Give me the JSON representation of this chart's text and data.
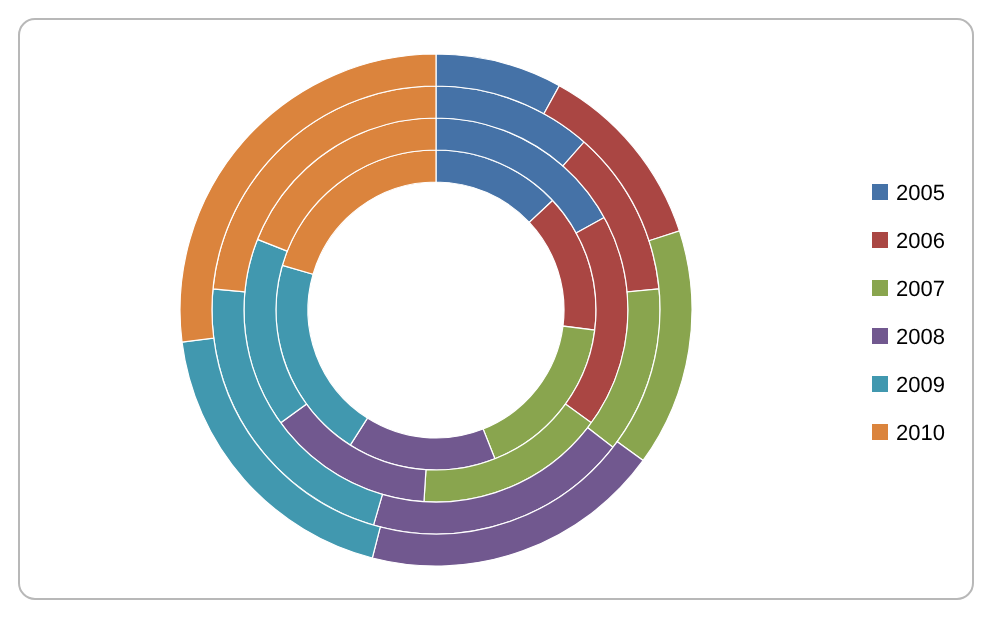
{
  "chart_data": {
    "type": "donut",
    "categories": [
      "2005",
      "2006",
      "2007",
      "2008",
      "2009",
      "2010"
    ],
    "colors": [
      "#4572a7",
      "#aa4643",
      "#89a54e",
      "#71588f",
      "#4198af",
      "#db843d"
    ],
    "series": [
      {
        "values": [
          13,
          14,
          17,
          15,
          20.5,
          20.5
        ]
      },
      {
        "values": [
          17,
          18,
          16,
          14,
          16,
          19
        ]
      },
      {
        "values": [
          11.5,
          12,
          12,
          19,
          22,
          23.5
        ]
      },
      {
        "values": [
          8,
          12,
          15,
          19,
          19,
          27
        ]
      }
    ],
    "legend": "right"
  }
}
